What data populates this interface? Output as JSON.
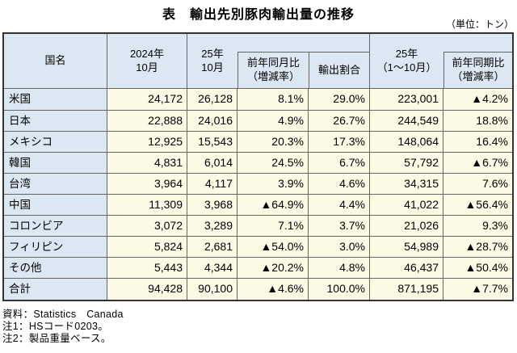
{
  "title": "表　輸出先別豚肉輸出量の推移",
  "unit_label": "（単位：トン）",
  "colors": {
    "header_bg": "#dbe7f3",
    "data_bg": "#fcf9e5",
    "inner_border": "#666666",
    "outer_border": "#333333"
  },
  "table": {
    "headers": {
      "country": "国名",
      "oct_2024": "2024年\n10月",
      "oct_25": "25年\n10月",
      "yoy_month": "前年同月比\n（増減率）",
      "share": "輸出割合",
      "jan_oct_25": "25年\n（1～10月）",
      "yoy_period": "前年同期比\n（増減率）"
    },
    "rows": [
      {
        "country": "米国",
        "values": [
          "24,172",
          "26,128",
          "8.1%",
          "29.0%",
          "223,001",
          "▲4.2%"
        ]
      },
      {
        "country": "日本",
        "values": [
          "22,888",
          "24,016",
          "4.9%",
          "26.7%",
          "244,549",
          "18.8%"
        ]
      },
      {
        "country": "メキシコ",
        "values": [
          "12,925",
          "15,543",
          "20.3%",
          "17.3%",
          "148,064",
          "16.4%"
        ]
      },
      {
        "country": "韓国",
        "values": [
          "4,831",
          "6,014",
          "24.5%",
          "6.7%",
          "57,792",
          "▲6.7%"
        ]
      },
      {
        "country": "台湾",
        "values": [
          "3,964",
          "4,117",
          "3.9%",
          "4.6%",
          "34,315",
          "7.6%"
        ]
      },
      {
        "country": "中国",
        "values": [
          "11,309",
          "3,968",
          "▲64.9%",
          "4.4%",
          "41,022",
          "▲56.4%"
        ]
      },
      {
        "country": "コロンビア",
        "values": [
          "3,072",
          "3,289",
          "7.1%",
          "3.7%",
          "21,026",
          "9.3%"
        ]
      },
      {
        "country": "フィリピン",
        "values": [
          "5,824",
          "2,681",
          "▲54.0%",
          "3.0%",
          "54,989",
          "▲28.7%"
        ]
      },
      {
        "country": "その他",
        "values": [
          "5,443",
          "4,344",
          "▲20.2%",
          "4.8%",
          "46,437",
          "▲50.4%"
        ]
      }
    ],
    "total_row": {
      "country": "合計",
      "values": [
        "94,428",
        "90,100",
        "▲4.6%",
        "100.0%",
        "871,195",
        "▲7.7%"
      ]
    }
  },
  "notes": {
    "source": "資料：Statistics　Canada",
    "note1": "注1：HSコード0203。",
    "note2": "注2：製品重量ベース。"
  }
}
